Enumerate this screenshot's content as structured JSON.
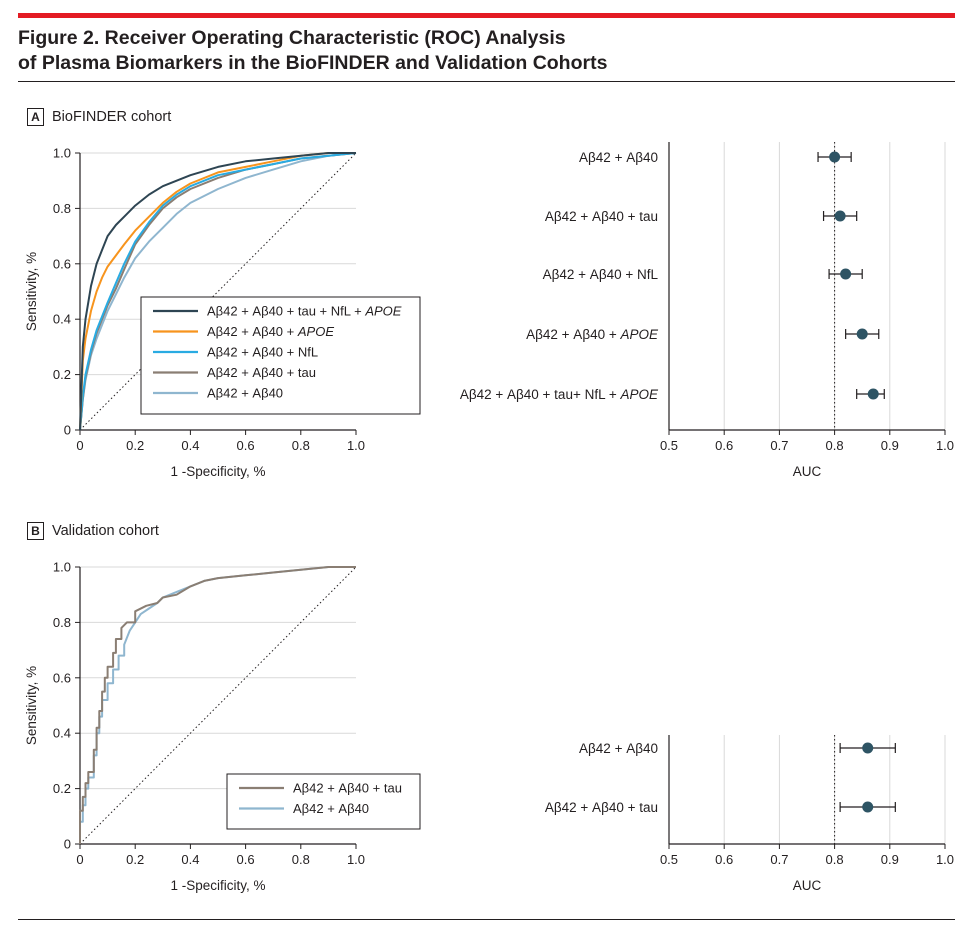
{
  "colors": {
    "accent_bar": "#e31b23",
    "text": "#231f20",
    "grid": "#d9d9d9",
    "point": "#2e5464",
    "series": [
      "#2e4553",
      "#f7941d",
      "#29abe2",
      "#8a7e73",
      "#8fb6cf"
    ]
  },
  "figure": {
    "title_line1": "Figure 2. Receiver Operating Characteristic (ROC) Analysis",
    "title_line2": "of Plasma Biomarkers in the BioFINDER and Validation Cohorts"
  },
  "panels": {
    "a": {
      "letter": "A",
      "title": "BioFINDER cohort"
    },
    "b": {
      "letter": "B",
      "title": "Validation cohort"
    }
  },
  "chart_data": [
    {
      "id": "roc-a",
      "type": "line",
      "xlabel": "1 -Specificity, %",
      "ylabel": "Sensitivity, %",
      "xlim": [
        0,
        1
      ],
      "ylim": [
        0,
        1
      ],
      "ticks": [
        "0",
        "0.2",
        "0.4",
        "0.6",
        "0.8",
        "1.0"
      ],
      "grid": "horizontal",
      "reference_line": "diagonal, dotted",
      "legend_position": "bottom-right",
      "series": [
        {
          "name": "Aβ42 + Aβ40 + tau + NfL + APOE",
          "x": [
            0,
            0.01,
            0.02,
            0.04,
            0.06,
            0.08,
            0.1,
            0.13,
            0.16,
            0.2,
            0.25,
            0.3,
            0.35,
            0.4,
            0.5,
            0.6,
            0.7,
            0.8,
            0.9,
            1.0
          ],
          "y": [
            0,
            0.3,
            0.4,
            0.52,
            0.6,
            0.65,
            0.7,
            0.74,
            0.77,
            0.81,
            0.85,
            0.88,
            0.9,
            0.92,
            0.95,
            0.97,
            0.98,
            0.99,
            1.0,
            1.0
          ]
        },
        {
          "name": "Aβ42 + Aβ40 + APOE",
          "x": [
            0,
            0.01,
            0.02,
            0.04,
            0.06,
            0.08,
            0.1,
            0.13,
            0.16,
            0.2,
            0.25,
            0.3,
            0.35,
            0.4,
            0.5,
            0.6,
            0.7,
            0.8,
            0.9,
            1.0
          ],
          "y": [
            0,
            0.25,
            0.33,
            0.43,
            0.5,
            0.55,
            0.59,
            0.63,
            0.67,
            0.72,
            0.77,
            0.82,
            0.86,
            0.89,
            0.93,
            0.95,
            0.97,
            0.99,
            1.0,
            1.0
          ]
        },
        {
          "name": "Aβ42 + Aβ40 + NfL",
          "x": [
            0,
            0.01,
            0.02,
            0.04,
            0.06,
            0.08,
            0.1,
            0.13,
            0.16,
            0.2,
            0.25,
            0.3,
            0.35,
            0.4,
            0.5,
            0.6,
            0.7,
            0.8,
            0.9,
            1.0
          ],
          "y": [
            0,
            0.12,
            0.2,
            0.29,
            0.36,
            0.41,
            0.46,
            0.53,
            0.6,
            0.68,
            0.75,
            0.81,
            0.85,
            0.88,
            0.92,
            0.94,
            0.96,
            0.98,
            0.99,
            1.0
          ]
        },
        {
          "name": "Aβ42 + Aβ40 + tau",
          "x": [
            0,
            0.01,
            0.02,
            0.04,
            0.06,
            0.08,
            0.1,
            0.13,
            0.16,
            0.2,
            0.25,
            0.3,
            0.35,
            0.4,
            0.5,
            0.6,
            0.7,
            0.8,
            0.9,
            1.0
          ],
          "y": [
            0,
            0.11,
            0.19,
            0.28,
            0.35,
            0.4,
            0.45,
            0.51,
            0.58,
            0.67,
            0.74,
            0.8,
            0.84,
            0.87,
            0.91,
            0.94,
            0.96,
            0.98,
            0.99,
            1.0
          ]
        },
        {
          "name": "Aβ42 + Aβ40",
          "x": [
            0,
            0.01,
            0.02,
            0.04,
            0.06,
            0.08,
            0.1,
            0.13,
            0.16,
            0.2,
            0.25,
            0.3,
            0.35,
            0.4,
            0.5,
            0.6,
            0.7,
            0.8,
            0.9,
            1.0
          ],
          "y": [
            0,
            0.11,
            0.18,
            0.27,
            0.33,
            0.38,
            0.43,
            0.49,
            0.55,
            0.62,
            0.68,
            0.73,
            0.78,
            0.82,
            0.87,
            0.91,
            0.94,
            0.97,
            0.99,
            1.0
          ]
        }
      ]
    },
    {
      "id": "forest-a",
      "type": "scatter",
      "xlabel": "AUC",
      "xlim": [
        0.5,
        1.0
      ],
      "ticks": [
        "0.5",
        "0.6",
        "0.7",
        "0.8",
        "0.9",
        "1.0"
      ],
      "reference_line": "AUC 0.8, dotted",
      "rows": [
        {
          "label": "Aβ42 + Aβ40",
          "auc": 0.8,
          "ci": [
            0.77,
            0.83
          ]
        },
        {
          "label": "Aβ42 + Aβ40 + tau",
          "auc": 0.81,
          "ci": [
            0.78,
            0.84
          ]
        },
        {
          "label": "Aβ42 + Aβ40 + NfL",
          "auc": 0.82,
          "ci": [
            0.79,
            0.85
          ]
        },
        {
          "label": "Aβ42 + Aβ40 + APOE",
          "auc": 0.85,
          "ci": [
            0.82,
            0.88
          ]
        },
        {
          "label": "Aβ42 + Aβ40 + tau+ NfL + APOE",
          "auc": 0.87,
          "ci": [
            0.84,
            0.89
          ]
        }
      ]
    },
    {
      "id": "roc-b",
      "type": "line",
      "xlabel": "1 -Specificity, %",
      "ylabel": "Sensitivity, %",
      "xlim": [
        0,
        1
      ],
      "ylim": [
        0,
        1
      ],
      "ticks": [
        "0",
        "0.2",
        "0.4",
        "0.6",
        "0.8",
        "1.0"
      ],
      "grid": "horizontal",
      "reference_line": "diagonal, dotted",
      "legend_position": "bottom-right",
      "series": [
        {
          "name": "Aβ42 + Aβ40 + tau",
          "x": [
            0,
            0,
            0.01,
            0.01,
            0.02,
            0.02,
            0.03,
            0.03,
            0.05,
            0.05,
            0.06,
            0.06,
            0.07,
            0.07,
            0.08,
            0.08,
            0.09,
            0.09,
            0.1,
            0.1,
            0.12,
            0.12,
            0.13,
            0.13,
            0.15,
            0.15,
            0.17,
            0.2,
            0.2,
            0.24,
            0.28,
            0.3,
            0.35,
            0.4,
            0.45,
            0.5,
            0.6,
            0.7,
            0.8,
            0.9,
            1.0
          ],
          "y": [
            0,
            0.12,
            0.12,
            0.17,
            0.17,
            0.22,
            0.22,
            0.26,
            0.26,
            0.34,
            0.34,
            0.42,
            0.42,
            0.48,
            0.48,
            0.55,
            0.55,
            0.6,
            0.6,
            0.64,
            0.64,
            0.69,
            0.69,
            0.74,
            0.74,
            0.78,
            0.8,
            0.8,
            0.84,
            0.86,
            0.87,
            0.89,
            0.9,
            0.93,
            0.95,
            0.96,
            0.97,
            0.98,
            0.99,
            1.0,
            1.0
          ]
        },
        {
          "name": "Aβ42 + Aβ40",
          "x": [
            0,
            0,
            0.01,
            0.01,
            0.02,
            0.02,
            0.03,
            0.03,
            0.05,
            0.05,
            0.06,
            0.06,
            0.07,
            0.07,
            0.08,
            0.08,
            0.1,
            0.1,
            0.12,
            0.12,
            0.14,
            0.14,
            0.16,
            0.16,
            0.18,
            0.2,
            0.22,
            0.25,
            0.28,
            0.3,
            0.35,
            0.4,
            0.45,
            0.5,
            0.6,
            0.7,
            0.8,
            0.9,
            1.0
          ],
          "y": [
            0,
            0.08,
            0.08,
            0.14,
            0.14,
            0.2,
            0.2,
            0.24,
            0.24,
            0.32,
            0.32,
            0.4,
            0.4,
            0.46,
            0.46,
            0.52,
            0.52,
            0.58,
            0.58,
            0.63,
            0.63,
            0.68,
            0.68,
            0.72,
            0.77,
            0.8,
            0.83,
            0.85,
            0.87,
            0.89,
            0.91,
            0.93,
            0.95,
            0.96,
            0.97,
            0.98,
            0.99,
            1.0,
            1.0
          ]
        }
      ]
    },
    {
      "id": "forest-b",
      "type": "scatter",
      "xlabel": "AUC",
      "xlim": [
        0.5,
        1.0
      ],
      "ticks": [
        "0.5",
        "0.6",
        "0.7",
        "0.8",
        "0.9",
        "1.0"
      ],
      "reference_line": "AUC 0.8, dotted",
      "rows": [
        {
          "label": "Aβ42 + Aβ40",
          "auc": 0.86,
          "ci": [
            0.81,
            0.91
          ]
        },
        {
          "label": "Aβ42 + Aβ40 + tau",
          "auc": 0.86,
          "ci": [
            0.81,
            0.91
          ]
        }
      ]
    }
  ]
}
